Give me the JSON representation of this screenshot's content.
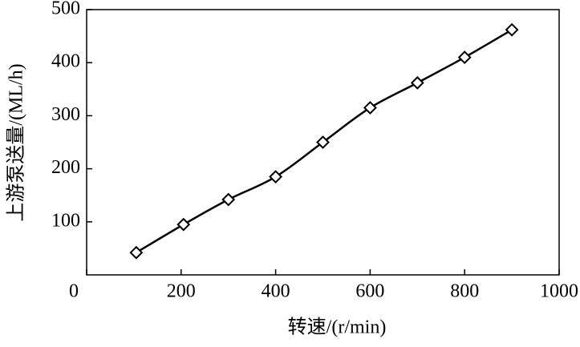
{
  "chart_data": {
    "type": "line",
    "x_label": "转速/(r/min)",
    "y_label": "上游泵送量/(ML/h)",
    "x": [
      105,
      205,
      300,
      400,
      500,
      600,
      700,
      800,
      900
    ],
    "series": [
      {
        "color": "#000000",
        "marker": "diamond",
        "values": [
          42,
          95,
          142,
          185,
          250,
          315,
          362,
          410,
          462
        ]
      }
    ],
    "xlim": [
      0,
      1000
    ],
    "xticks": [
      0,
      200,
      400,
      600,
      800,
      1000
    ],
    "ylim": [
      0,
      500
    ],
    "yticks": [
      100,
      200,
      300,
      400,
      500
    ],
    "grid": false
  }
}
